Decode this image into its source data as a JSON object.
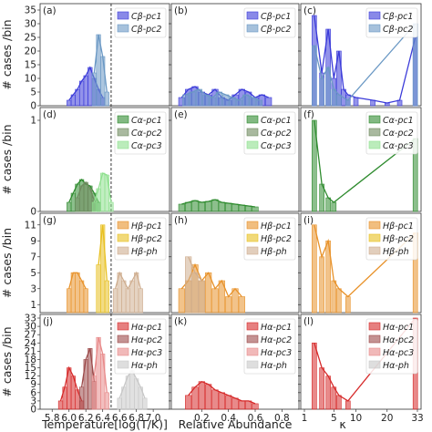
{
  "figure": {
    "ylabel": "# cases /bin",
    "xlabels": [
      "Temperature[log(T/K)]",
      "Relative Abundance",
      "κ"
    ],
    "xticks": [
      [
        "5.8",
        "6.0",
        "6.2",
        "6.4",
        "6.6",
        "6.8",
        "7.0"
      ],
      [
        "0.2",
        "0.4",
        "0.6",
        "0.8"
      ],
      [
        "1",
        "5",
        "10",
        "20",
        "33"
      ]
    ],
    "dashed_line_temperature": 6.5
  },
  "colors": {
    "Cb_c1": "#3b3bd9",
    "Cb_c2": "#6a98c4",
    "Ca_c1": "#2e8b2e",
    "Ca_c2": "#6f8a5f",
    "Ca_c3": "#8ee08e",
    "Hb_c1": "#e8922a",
    "Hb_c2": "#e8c020",
    "Hb_h": "#cfae90",
    "Ha_c1": "#d62a2a",
    "Ha_c2": "#9c4a4a",
    "Ha_c3": "#e88a8a",
    "Ha_h": "#c8c8c8"
  },
  "rows": [
    {
      "id": "Cb",
      "yticks": [
        "0",
        "5",
        "10",
        "15",
        "20",
        "25",
        "30",
        "35"
      ],
      "ymax": 36,
      "legend": [
        "Cβ-pc1",
        "Cβ-pc2"
      ],
      "keys": [
        "Cb_c1",
        "Cb_c2"
      ],
      "panels": [
        "(a)",
        "(b)",
        "(c)"
      ]
    },
    {
      "id": "Ca",
      "yticks": [
        "0",
        "1"
      ],
      "ymax": 1.1,
      "legend": [
        "Cα-pc1",
        "Cα-pc2",
        "Cα-pc3"
      ],
      "keys": [
        "Ca_c1",
        "Ca_c2",
        "Ca_c3"
      ],
      "panels": [
        "(d)",
        "(e)",
        "(f)"
      ]
    },
    {
      "id": "Hb",
      "yticks": [
        "1",
        "3",
        "5",
        "7",
        "9",
        "11"
      ],
      "ymax": 12,
      "legend": [
        "Hβ-pc1",
        "Hβ-pc2",
        "Hβ-ph"
      ],
      "keys": [
        "Hb_c1",
        "Hb_c2",
        "Hb_h"
      ],
      "panels": [
        "(g)",
        "(h)",
        "(i)"
      ]
    },
    {
      "id": "Ha",
      "yticks": [
        "0",
        "3",
        "6",
        "9",
        "12",
        "15",
        "18",
        "21",
        "24",
        "27",
        "30",
        "33"
      ],
      "ymax": 33,
      "legend": [
        "Hα-pc1",
        "Hα-pc2",
        "Hα-pc3",
        "Hα-ph"
      ],
      "keys": [
        "Ha_c1",
        "Ha_c2",
        "Ha_c3",
        "Ha_h"
      ],
      "panels": [
        "(j)",
        "(k)",
        "(l)"
      ]
    }
  ],
  "chart_data": {
    "type": "bar",
    "layout": "4x3 histogram grid",
    "columns": [
      {
        "xlabel": "Temperature[log(T/K)]",
        "xlim": [
          5.7,
          7.15
        ]
      },
      {
        "xlabel": "Relative Abundance",
        "xlim": [
          0.0,
          0.9
        ]
      },
      {
        "xlabel": "κ",
        "xlim": [
          1,
          33
        ]
      }
    ],
    "series": [
      {
        "row": 0,
        "col": 0,
        "key": "Cb_c1",
        "x": [
          6.0,
          6.05,
          6.1,
          6.15,
          6.2,
          6.25,
          6.3,
          6.35,
          6.4
        ],
        "values": [
          2,
          4,
          6,
          9,
          11,
          14,
          10,
          6,
          3
        ]
      },
      {
        "row": 0,
        "col": 0,
        "key": "Cb_c2",
        "x": [
          6.3,
          6.35,
          6.4,
          6.45
        ],
        "values": [
          12,
          26,
          18,
          5
        ]
      },
      {
        "row": 0,
        "col": 1,
        "key": "Cb_c1",
        "x": [
          0.05,
          0.1,
          0.15,
          0.2,
          0.25,
          0.3,
          0.35,
          0.4,
          0.45,
          0.5,
          0.55,
          0.6,
          0.65,
          0.7
        ],
        "values": [
          3,
          6,
          7,
          5,
          4,
          6,
          3,
          2,
          4,
          6,
          5,
          3,
          4,
          3
        ]
      },
      {
        "row": 0,
        "col": 1,
        "key": "Cb_c2",
        "x": [
          0.08,
          0.13,
          0.18,
          0.23,
          0.28,
          0.33,
          0.38,
          0.43,
          0.48,
          0.53,
          0.58,
          0.63
        ],
        "values": [
          4,
          5,
          6,
          4,
          3,
          5,
          4,
          3,
          2,
          4,
          3,
          2
        ]
      },
      {
        "row": 0,
        "col": 2,
        "key": "Cb_c1",
        "x": [
          2,
          3,
          4,
          5,
          6,
          7,
          8,
          10,
          15,
          20,
          25,
          32
        ],
        "values": [
          33,
          12,
          28,
          10,
          20,
          6,
          4,
          3,
          2,
          1,
          2,
          25
        ]
      },
      {
        "row": 0,
        "col": 2,
        "key": "Cb_c2",
        "x": [
          2,
          3,
          4,
          5,
          6,
          8,
          32
        ],
        "values": [
          22,
          10,
          14,
          6,
          4,
          2,
          30
        ]
      },
      {
        "row": 1,
        "col": 0,
        "key": "Ca_c1",
        "x": [
          6.0,
          6.05,
          6.1,
          6.15,
          6.2,
          6.25,
          6.3,
          6.35
        ],
        "values": [
          0.1,
          0.2,
          0.3,
          0.35,
          0.3,
          0.28,
          0.2,
          0.1
        ]
      },
      {
        "row": 1,
        "col": 0,
        "key": "Ca_c2",
        "x": [
          6.1,
          6.15,
          6.2,
          6.25,
          6.3
        ],
        "values": [
          0.15,
          0.28,
          0.32,
          0.25,
          0.12
        ]
      },
      {
        "row": 1,
        "col": 0,
        "key": "Ca_c3",
        "x": [
          6.3,
          6.35,
          6.4,
          6.45,
          6.5
        ],
        "values": [
          0.1,
          0.25,
          0.42,
          0.4,
          0.1
        ]
      },
      {
        "row": 1,
        "col": 1,
        "key": "Ca_c1",
        "x": [
          0.05,
          0.1,
          0.15,
          0.2,
          0.25,
          0.3,
          0.35,
          0.4,
          0.45,
          0.5,
          0.55,
          0.6
        ],
        "values": [
          0.08,
          0.1,
          0.12,
          0.1,
          0.11,
          0.13,
          0.1,
          0.09,
          0.08,
          0.07,
          0.06,
          0.05
        ]
      },
      {
        "row": 1,
        "col": 2,
        "key": "Ca_c1",
        "x": [
          2,
          3,
          4,
          5,
          32
        ],
        "values": [
          1.0,
          0.3,
          0.15,
          0.1,
          0.8
        ]
      },
      {
        "row": 2,
        "col": 0,
        "key": "Hb_c1",
        "x": [
          6.0,
          6.05,
          6.1,
          6.15,
          6.2
        ],
        "values": [
          3,
          5,
          5,
          4,
          3
        ]
      },
      {
        "row": 2,
        "col": 0,
        "key": "Hb_c2",
        "x": [
          6.35,
          6.4,
          6.45
        ],
        "values": [
          6,
          11,
          4
        ]
      },
      {
        "row": 2,
        "col": 0,
        "key": "Hb_h",
        "x": [
          6.55,
          6.6,
          6.65,
          6.7,
          6.75,
          6.8,
          6.85
        ],
        "values": [
          3,
          5,
          4,
          3,
          4,
          5,
          3
        ]
      },
      {
        "row": 2,
        "col": 1,
        "key": "Hb_c1",
        "x": [
          0.05,
          0.1,
          0.15,
          0.2,
          0.25,
          0.3,
          0.35,
          0.4,
          0.45,
          0.5
        ],
        "values": [
          3,
          4,
          6,
          4,
          5,
          3,
          4,
          2,
          3,
          2
        ]
      },
      {
        "row": 2,
        "col": 1,
        "key": "Hb_h",
        "x": [
          0.1,
          0.15,
          0.2
        ],
        "values": [
          7,
          5,
          4
        ]
      },
      {
        "row": 2,
        "col": 2,
        "key": "Hb_c1",
        "x": [
          2,
          3,
          4,
          5,
          6,
          8,
          32
        ],
        "values": [
          11,
          7,
          9,
          4,
          3,
          2,
          10
        ]
      },
      {
        "row": 3,
        "col": 0,
        "key": "Ha_c1",
        "x": [
          5.9,
          5.95,
          6.0,
          6.05,
          6.1,
          6.15
        ],
        "values": [
          3,
          8,
          15,
          12,
          7,
          3
        ]
      },
      {
        "row": 3,
        "col": 0,
        "key": "Ha_c2",
        "x": [
          6.15,
          6.2,
          6.25,
          6.3
        ],
        "values": [
          8,
          18,
          22,
          10
        ]
      },
      {
        "row": 3,
        "col": 0,
        "key": "Ha_c3",
        "x": [
          6.3,
          6.35,
          6.4,
          6.45
        ],
        "values": [
          12,
          26,
          20,
          6
        ]
      },
      {
        "row": 3,
        "col": 0,
        "key": "Ha_h",
        "x": [
          6.6,
          6.65,
          6.7,
          6.75,
          6.8,
          6.85,
          6.9
        ],
        "values": [
          4,
          8,
          12,
          14,
          11,
          8,
          4
        ]
      },
      {
        "row": 3,
        "col": 1,
        "key": "Ha_c1",
        "x": [
          0.1,
          0.15,
          0.2,
          0.25,
          0.3,
          0.35,
          0.4,
          0.45,
          0.5,
          0.55,
          0.6
        ],
        "values": [
          5,
          8,
          10,
          9,
          7,
          6,
          5,
          4,
          3,
          3,
          2
        ]
      },
      {
        "row": 3,
        "col": 2,
        "key": "Ha_c1",
        "x": [
          2,
          3,
          4,
          5,
          6,
          8,
          32
        ],
        "values": [
          24,
          15,
          12,
          8,
          5,
          3,
          33
        ]
      }
    ]
  }
}
